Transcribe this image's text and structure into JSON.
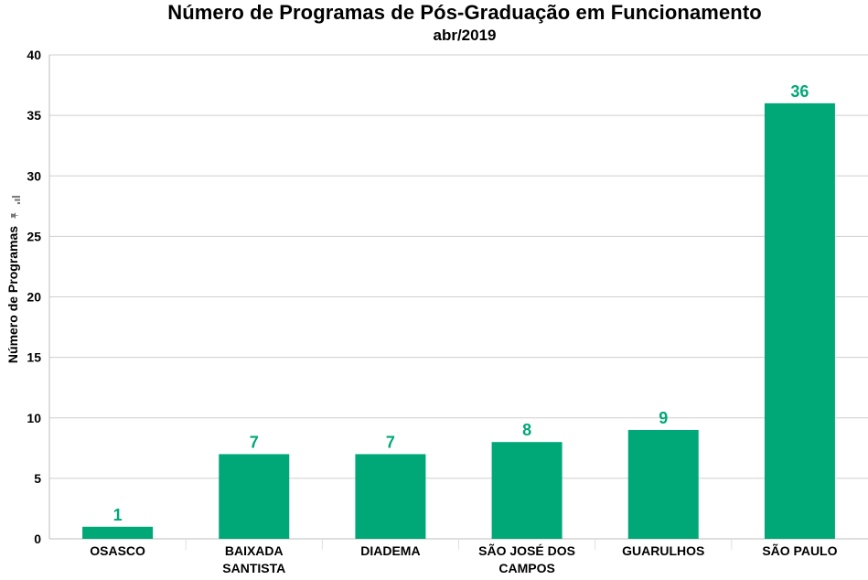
{
  "chart_data": {
    "type": "bar",
    "title": "Número de Programas de Pós-Graduação em Funcionamento",
    "subtitle": "abr/2019",
    "xlabel": "",
    "ylabel": "Número de Programas",
    "categories": [
      [
        "OSASCO"
      ],
      [
        "BAIXADA",
        "SANTISTA"
      ],
      [
        "DIADEMA"
      ],
      [
        "SÃO JOSÉ DOS",
        "CAMPOS"
      ],
      [
        "GUARULHOS"
      ],
      [
        "SÃO PAULO"
      ]
    ],
    "values": [
      1,
      7,
      7,
      8,
      9,
      36
    ],
    "data_labels": [
      "1",
      "7",
      "7",
      "8",
      "9",
      "36"
    ],
    "ylim": [
      0,
      40
    ],
    "yticks": [
      0,
      5,
      10,
      15,
      20,
      25,
      30,
      35,
      40
    ],
    "grid": true,
    "legend": "none",
    "colors": {
      "bar": "#00a878",
      "data_label": "#00a878",
      "grid": "#cfcfcf",
      "axis": "#bdbdbd"
    }
  },
  "icons": {
    "ylabel_icons": [
      "pin-icon",
      "bar-chart-mini-icon"
    ]
  }
}
